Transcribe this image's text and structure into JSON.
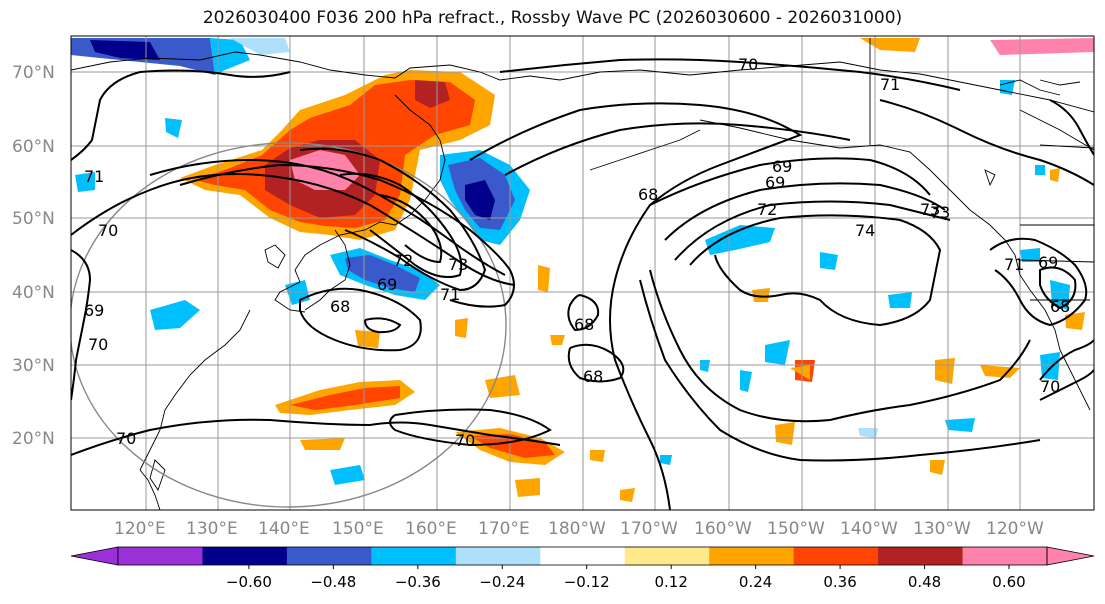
{
  "title": "2026030400 F036 200 hPa refract., Rossby Wave PC (2026030600 - 2026031000)",
  "lat_labels": [
    "70°N",
    "60°N",
    "50°N",
    "40°N",
    "30°N",
    "20°N"
  ],
  "lon_labels": [
    "120°E",
    "130°E",
    "140°E",
    "150°E",
    "160°E",
    "170°E",
    "180°W",
    "170°W",
    "160°W",
    "150°W",
    "140°W",
    "130°W",
    "120°W"
  ],
  "colorbar": {
    "ticks": [
      "−0.60",
      "−0.48",
      "−0.36",
      "−0.24",
      "−0.12",
      "0.12",
      "0.24",
      "0.36",
      "0.48",
      "0.60"
    ],
    "colors": [
      "#9b30d9",
      "#00008b",
      "#3a5acc",
      "#00bfff",
      "#aee0fb",
      "#ffffff",
      "#ffe98a",
      "#ffa500",
      "#ff4500",
      "#b22222",
      "#ff82ab",
      "#ff82ab"
    ]
  },
  "contour_labels": [
    "70",
    "71",
    "72",
    "68",
    "69",
    "74",
    "73",
    "71",
    "69",
    "68",
    "73",
    "68",
    "69",
    "70",
    "70",
    "70",
    "71",
    "72",
    "73",
    "69",
    "68",
    "70",
    "69",
    "71",
    "70",
    "68"
  ]
}
